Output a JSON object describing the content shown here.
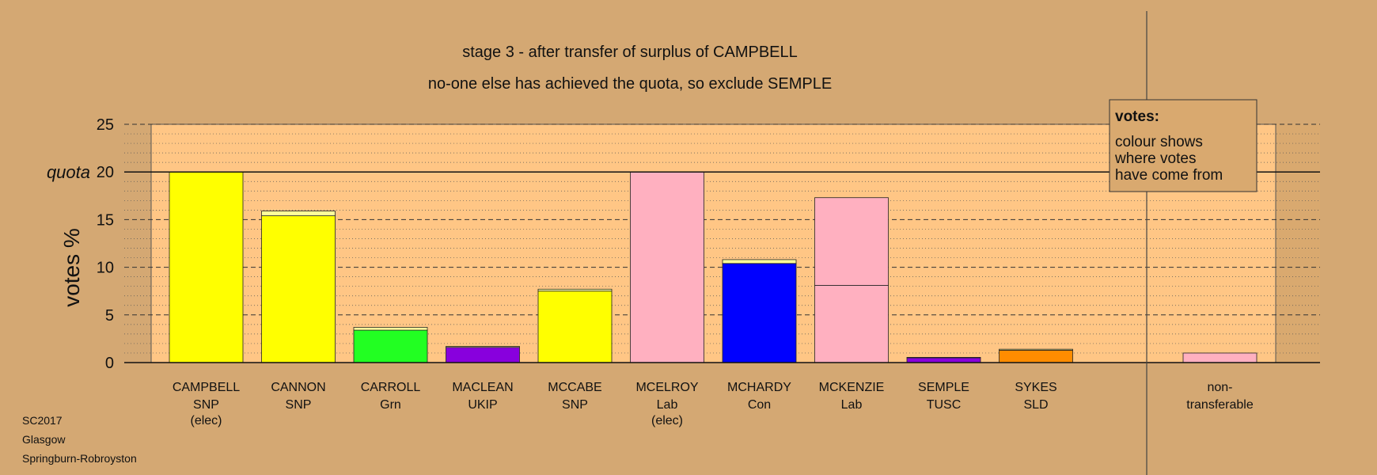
{
  "chart_data": {
    "type": "bar",
    "stacked": true,
    "title": "stage 3 - after transfer of surplus of CAMPBELL",
    "subtitle": "no-one else has achieved the quota, so exclude SEMPLE",
    "ylabel": "votes %",
    "ylim": [
      0,
      25
    ],
    "yticks": [
      "0",
      "5",
      "10",
      "15",
      "20",
      "25"
    ],
    "quota": 20,
    "quota_label": "quota",
    "candidates": [
      {
        "name": "CAMPBELL",
        "party": "SNP",
        "note": "(elec)",
        "segments": [
          {
            "value": 20.0,
            "color": "#ffff00"
          }
        ]
      },
      {
        "name": "CANNON",
        "party": "SNP",
        "note": "",
        "segments": [
          {
            "value": 15.4,
            "color": "#ffff00"
          },
          {
            "value": 0.5,
            "color": "#ffff9a"
          }
        ]
      },
      {
        "name": "CARROLL",
        "party": "Grn",
        "note": "",
        "segments": [
          {
            "value": 3.4,
            "color": "#22ff22"
          },
          {
            "value": 0.3,
            "color": "#ffff9a"
          }
        ]
      },
      {
        "name": "MACLEAN",
        "party": "UKIP",
        "note": "",
        "segments": [
          {
            "value": 1.6,
            "color": "#8800dd"
          },
          {
            "value": 0.1,
            "color": "#ffff9a"
          }
        ]
      },
      {
        "name": "MCCABE",
        "party": "SNP",
        "note": "",
        "segments": [
          {
            "value": 7.5,
            "color": "#ffff00"
          },
          {
            "value": 0.2,
            "color": "#ffff9a"
          }
        ]
      },
      {
        "name": "MCELROY",
        "party": "Lab",
        "note": "(elec)",
        "segments": [
          {
            "value": 20.0,
            "color": "#ffb0c0"
          }
        ]
      },
      {
        "name": "MCHARDY",
        "party": "Con",
        "note": "",
        "segments": [
          {
            "value": 10.4,
            "color": "#0000ff"
          },
          {
            "value": 0.4,
            "color": "#ffff9a"
          }
        ]
      },
      {
        "name": "MCKENZIE",
        "party": "Lab",
        "note": "",
        "segments": [
          {
            "value": 8.1,
            "color": "#ffb0c0"
          },
          {
            "value": 9.2,
            "color": "#ffb0c0"
          }
        ]
      },
      {
        "name": "SEMPLE",
        "party": "TUSC",
        "note": "",
        "segments": [
          {
            "value": 0.5,
            "color": "#8800dd"
          },
          {
            "value": 0.05,
            "color": "#ffff9a"
          }
        ]
      },
      {
        "name": "SYKES",
        "party": "SLD",
        "note": "",
        "segments": [
          {
            "value": 1.3,
            "color": "#ff8c00"
          },
          {
            "value": 0.1,
            "color": "#ffff9a"
          }
        ]
      }
    ],
    "nontransferable": {
      "label_line1": "non-",
      "label_line2": "transferable",
      "value": 1.0,
      "color": "#ffb0c0"
    },
    "legend": {
      "title": "votes:",
      "lines": [
        "colour shows",
        "where votes",
        "have come from"
      ],
      "position": "top-right"
    }
  },
  "footer": {
    "lines": [
      "SC2017",
      "Glasgow",
      "Springburn-Robroyston"
    ]
  },
  "colors": {
    "background": "#d4a873",
    "plot_area": "#ffc685",
    "side_area": "#d9a96f"
  }
}
